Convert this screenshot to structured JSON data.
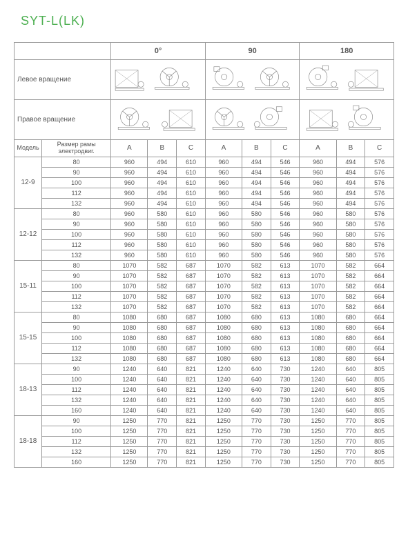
{
  "title": "SYT-L(LK)",
  "angles": [
    "0°",
    "90",
    "180"
  ],
  "rotation_labels": {
    "left": "Левое\nвращение",
    "right": "Правое\nвращение"
  },
  "header_labels": {
    "model": "Модель",
    "frame": "Размер рамы электродвиг.",
    "cols": [
      "A",
      "B",
      "C"
    ]
  },
  "colors": {
    "title": "#4CAF50",
    "border": "#999999",
    "text": "#555555",
    "background": "#ffffff"
  },
  "typography": {
    "title_fontsize": 18,
    "header_fontsize": 10,
    "data_fontsize": 9,
    "font_family": "Arial"
  },
  "table": {
    "type": "table",
    "columns": [
      "Модель",
      "Размер рамы",
      "A0",
      "B0",
      "C0",
      "A90",
      "B90",
      "C90",
      "A180",
      "B180",
      "C180"
    ],
    "groups": [
      {
        "model": "12-9",
        "rows": [
          {
            "frame": "80",
            "v": [
              "960",
              "494",
              "610",
              "960",
              "494",
              "546",
              "960",
              "494",
              "576"
            ]
          },
          {
            "frame": "90",
            "v": [
              "960",
              "494",
              "610",
              "960",
              "494",
              "546",
              "960",
              "494",
              "576"
            ]
          },
          {
            "frame": "100",
            "v": [
              "960",
              "494",
              "610",
              "960",
              "494",
              "546",
              "960",
              "494",
              "576"
            ]
          },
          {
            "frame": "112",
            "v": [
              "960",
              "494",
              "610",
              "960",
              "494",
              "546",
              "960",
              "494",
              "576"
            ]
          },
          {
            "frame": "132",
            "v": [
              "960",
              "494",
              "610",
              "960",
              "494",
              "546",
              "960",
              "494",
              "576"
            ]
          }
        ]
      },
      {
        "model": "12-12",
        "rows": [
          {
            "frame": "80",
            "v": [
              "960",
              "580",
              "610",
              "960",
              "580",
              "546",
              "960",
              "580",
              "576"
            ]
          },
          {
            "frame": "90",
            "v": [
              "960",
              "580",
              "610",
              "960",
              "580",
              "546",
              "960",
              "580",
              "576"
            ]
          },
          {
            "frame": "100",
            "v": [
              "960",
              "580",
              "610",
              "960",
              "580",
              "546",
              "960",
              "580",
              "576"
            ]
          },
          {
            "frame": "112",
            "v": [
              "960",
              "580",
              "610",
              "960",
              "580",
              "546",
              "960",
              "580",
              "576"
            ]
          },
          {
            "frame": "132",
            "v": [
              "960",
              "580",
              "610",
              "960",
              "580",
              "546",
              "960",
              "580",
              "576"
            ]
          }
        ]
      },
      {
        "model": "15-11",
        "rows": [
          {
            "frame": "80",
            "v": [
              "1070",
              "582",
              "687",
              "1070",
              "582",
              "613",
              "1070",
              "582",
              "664"
            ]
          },
          {
            "frame": "90",
            "v": [
              "1070",
              "582",
              "687",
              "1070",
              "582",
              "613",
              "1070",
              "582",
              "664"
            ]
          },
          {
            "frame": "100",
            "v": [
              "1070",
              "582",
              "687",
              "1070",
              "582",
              "613",
              "1070",
              "582",
              "664"
            ]
          },
          {
            "frame": "112",
            "v": [
              "1070",
              "582",
              "687",
              "1070",
              "582",
              "613",
              "1070",
              "582",
              "664"
            ]
          },
          {
            "frame": "132",
            "v": [
              "1070",
              "582",
              "687",
              "1070",
              "582",
              "613",
              "1070",
              "582",
              "664"
            ]
          }
        ]
      },
      {
        "model": "15-15",
        "rows": [
          {
            "frame": "80",
            "v": [
              "1080",
              "680",
              "687",
              "1080",
              "680",
              "613",
              "1080",
              "680",
              "664"
            ]
          },
          {
            "frame": "90",
            "v": [
              "1080",
              "680",
              "687",
              "1080",
              "680",
              "613",
              "1080",
              "680",
              "664"
            ]
          },
          {
            "frame": "100",
            "v": [
              "1080",
              "680",
              "687",
              "1080",
              "680",
              "613",
              "1080",
              "680",
              "664"
            ]
          },
          {
            "frame": "112",
            "v": [
              "1080",
              "680",
              "687",
              "1080",
              "680",
              "613",
              "1080",
              "680",
              "664"
            ]
          },
          {
            "frame": "132",
            "v": [
              "1080",
              "680",
              "687",
              "1080",
              "680",
              "613",
              "1080",
              "680",
              "664"
            ]
          }
        ]
      },
      {
        "model": "18-13",
        "rows": [
          {
            "frame": "90",
            "v": [
              "1240",
              "640",
              "821",
              "1240",
              "640",
              "730",
              "1240",
              "640",
              "805"
            ]
          },
          {
            "frame": "100",
            "v": [
              "1240",
              "640",
              "821",
              "1240",
              "640",
              "730",
              "1240",
              "640",
              "805"
            ]
          },
          {
            "frame": "112",
            "v": [
              "1240",
              "640",
              "821",
              "1240",
              "640",
              "730",
              "1240",
              "640",
              "805"
            ]
          },
          {
            "frame": "132",
            "v": [
              "1240",
              "640",
              "821",
              "1240",
              "640",
              "730",
              "1240",
              "640",
              "805"
            ]
          },
          {
            "frame": "160",
            "v": [
              "1240",
              "640",
              "821",
              "1240",
              "640",
              "730",
              "1240",
              "640",
              "805"
            ]
          }
        ]
      },
      {
        "model": "18-18",
        "rows": [
          {
            "frame": "90",
            "v": [
              "1250",
              "770",
              "821",
              "1250",
              "770",
              "730",
              "1250",
              "770",
              "805"
            ]
          },
          {
            "frame": "100",
            "v": [
              "1250",
              "770",
              "821",
              "1250",
              "770",
              "730",
              "1250",
              "770",
              "805"
            ]
          },
          {
            "frame": "112",
            "v": [
              "1250",
              "770",
              "821",
              "1250",
              "770",
              "730",
              "1250",
              "770",
              "805"
            ]
          },
          {
            "frame": "132",
            "v": [
              "1250",
              "770",
              "821",
              "1250",
              "770",
              "730",
              "1250",
              "770",
              "805"
            ]
          },
          {
            "frame": "160",
            "v": [
              "1250",
              "770",
              "821",
              "1250",
              "770",
              "730",
              "1250",
              "770",
              "805"
            ]
          }
        ]
      }
    ]
  }
}
